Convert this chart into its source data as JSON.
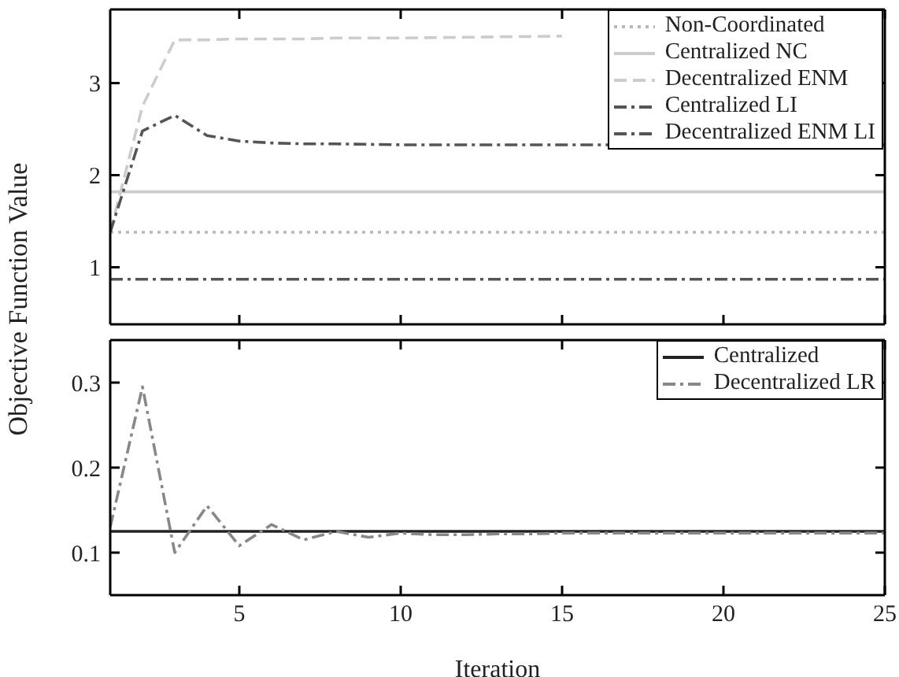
{
  "chart_data": [
    {
      "type": "line",
      "ylabel": "Objective Function Value",
      "x": [
        1,
        2,
        3,
        4,
        5,
        6,
        7,
        8,
        10,
        15,
        20,
        25
      ],
      "xlim": [
        1,
        25
      ],
      "xticks": [
        5,
        10,
        15,
        20,
        25
      ],
      "ylim": [
        0.38,
        3.8
      ],
      "yticks": [
        1,
        2,
        3
      ],
      "tick_labels": "y",
      "legend": "top right",
      "marker": "none",
      "series": [
        {
          "name": "Non-Coordinated",
          "color": "#b8b8b8",
          "line_style": "dotted",
          "values": [
            1.38,
            1.38,
            1.38,
            1.38,
            1.38,
            1.38,
            1.38,
            1.38,
            1.38,
            1.38,
            1.38,
            1.38
          ]
        },
        {
          "name": "Centralized NC",
          "color": "#cccccc",
          "line_style": "solid",
          "values": [
            1.82,
            1.82,
            1.82,
            1.82,
            1.82,
            1.82,
            1.82,
            1.82,
            1.82,
            1.82,
            1.82,
            1.82
          ]
        },
        {
          "name": "Decentralized ENM",
          "color": "#cccccc",
          "line_style": "dashed",
          "values": [
            1.38,
            2.75,
            3.47,
            3.47,
            3.48,
            3.48,
            3.48,
            3.49,
            3.49,
            3.51,
            null,
            null
          ]
        },
        {
          "name": "Centralized LI",
          "color": "#555555",
          "line_style": "dashdot",
          "values": [
            1.38,
            2.48,
            2.65,
            2.43,
            2.37,
            2.35,
            2.34,
            2.34,
            2.33,
            2.33,
            2.33,
            2.33
          ]
        },
        {
          "name": "Decentralized ENM LI",
          "color": "#555555",
          "line_style": "dashdot",
          "values": [
            0.87,
            0.87,
            0.87,
            0.87,
            0.87,
            0.87,
            0.87,
            0.87,
            0.87,
            0.87,
            0.87,
            0.87
          ]
        }
      ]
    },
    {
      "type": "line",
      "xlabel": "Iteration",
      "x": [
        1,
        2,
        3,
        4,
        5,
        6,
        7,
        8,
        9,
        10,
        11,
        12,
        13,
        14,
        15,
        16,
        17,
        18,
        19,
        20,
        21,
        22,
        23,
        24,
        25
      ],
      "xlim": [
        1,
        25
      ],
      "xticks": [
        5,
        10,
        15,
        20,
        25
      ],
      "ylim": [
        0.05,
        0.35
      ],
      "yticks": [
        0.1,
        0.2,
        0.3
      ],
      "legend": "top right",
      "marker": "none",
      "series": [
        {
          "name": "Centralized",
          "color": "#222222",
          "line_style": "solid",
          "values": [
            0.125,
            0.125,
            0.125,
            0.125,
            0.125,
            0.125,
            0.125,
            0.125,
            0.125,
            0.125,
            0.125,
            0.125,
            0.125,
            0.125,
            0.125,
            0.125,
            0.125,
            0.125,
            0.125,
            0.125,
            0.125,
            0.125,
            0.125,
            0.125,
            0.125
          ]
        },
        {
          "name": "Decentralized LR",
          "color": "#888888",
          "line_style": "dashdot",
          "values": [
            0.13,
            0.295,
            0.1,
            0.155,
            0.108,
            0.133,
            0.115,
            0.125,
            0.118,
            0.123,
            0.121,
            0.121,
            0.122,
            0.122,
            0.123,
            0.123,
            0.123,
            0.123,
            0.123,
            0.123,
            0.123,
            0.123,
            0.123,
            0.123,
            0.123
          ]
        }
      ]
    }
  ]
}
